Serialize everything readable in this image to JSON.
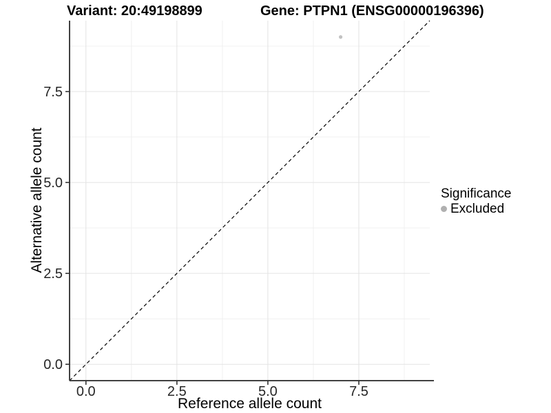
{
  "chart_data": {
    "type": "scatter",
    "title_left": "Variant: 20:49198899",
    "title_right": "Gene: PTPN1 (ENSG00000196396)",
    "xlabel": "Reference allele count",
    "ylabel": "Alternative allele count",
    "xlim": [
      -0.45,
      9.45
    ],
    "ylim": [
      -0.45,
      9.45
    ],
    "xticks": [
      0,
      2.5,
      5,
      7.5
    ],
    "yticks": [
      0,
      2.5,
      5,
      7.5
    ],
    "xtick_labels": [
      "0.0",
      "2.5",
      "5.0",
      "7.5"
    ],
    "ytick_labels": [
      "0.0",
      "2.5",
      "5.0",
      "7.5"
    ],
    "minor_xticks": [
      1.25,
      3.75,
      6.25,
      8.75
    ],
    "minor_yticks": [
      1.25,
      3.75,
      6.25,
      8.75
    ],
    "grid": "major+minor",
    "series": [
      {
        "name": "Excluded",
        "marker": "circle",
        "color": "#c2c2c2",
        "points": [
          {
            "x": 7,
            "y": 9
          }
        ]
      }
    ],
    "reference_line": {
      "kind": "identity-diagonal",
      "style": "dashed",
      "color": "#000000"
    },
    "legend": {
      "title": "Significance",
      "position": "right",
      "entries": [
        {
          "label": "Excluded",
          "marker": "circle",
          "color": "#b0b0b0"
        }
      ]
    },
    "style_colors": {
      "grid_major": "#e3e3e3",
      "grid_minor": "#f0f0f0",
      "axis_line": "#404040",
      "tick_mark": "#333333",
      "tick_label": "#262626",
      "background": "#ffffff"
    }
  }
}
